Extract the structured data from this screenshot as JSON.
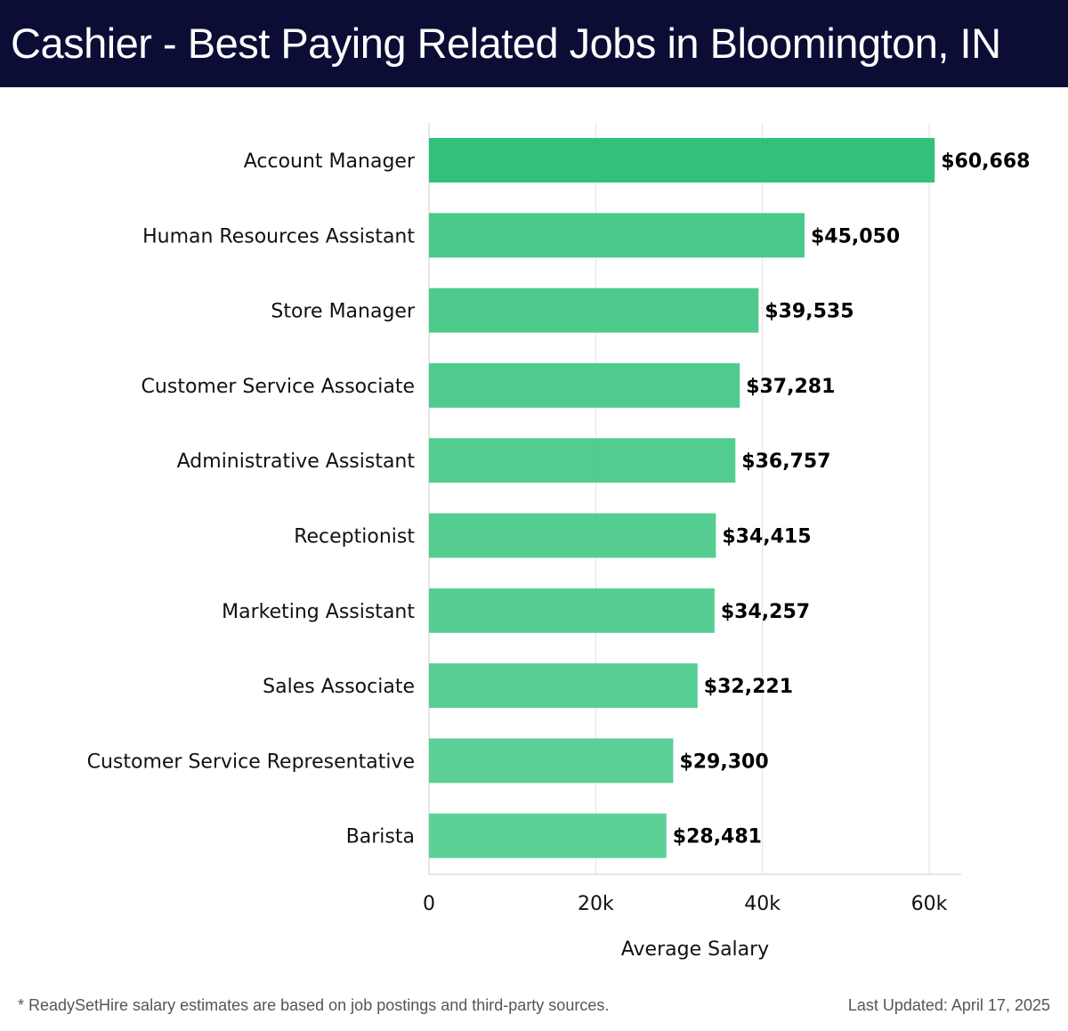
{
  "header": {
    "title": "Cashier - Best Paying Related Jobs in Bloomington, IN"
  },
  "chart_data": {
    "type": "bar",
    "orientation": "horizontal",
    "title": "Cashier - Best Paying Related Jobs in Bloomington, IN",
    "categories": [
      "Account Manager",
      "Human Resources Assistant",
      "Store Manager",
      "Customer Service Associate",
      "Administrative Assistant",
      "Receptionist",
      "Marketing Assistant",
      "Sales Associate",
      "Customer Service Representative",
      "Barista"
    ],
    "values": [
      60668,
      45050,
      39535,
      37281,
      36757,
      34415,
      34257,
      32221,
      29300,
      28481
    ],
    "value_labels": [
      "$60,668",
      "$45,050",
      "$39,535",
      "$37,281",
      "$36,757",
      "$34,415",
      "$34,257",
      "$32,221",
      "$29,300",
      "$28,481"
    ],
    "xlabel": "Average Salary",
    "ylabel": "",
    "xlim": [
      0,
      64000
    ],
    "xticks": [
      0,
      20000,
      40000,
      60000
    ],
    "xtick_labels": [
      "0",
      "20k",
      "40k",
      "60k"
    ],
    "grid": true,
    "colors": {
      "top": "#2bbf75",
      "rest_start": "#45c786",
      "rest_end": "#58ce94"
    }
  },
  "footer": {
    "note": "* ReadySetHire salary estimates are based on job postings and third-party sources.",
    "updated": "Last Updated: April 17, 2025"
  }
}
